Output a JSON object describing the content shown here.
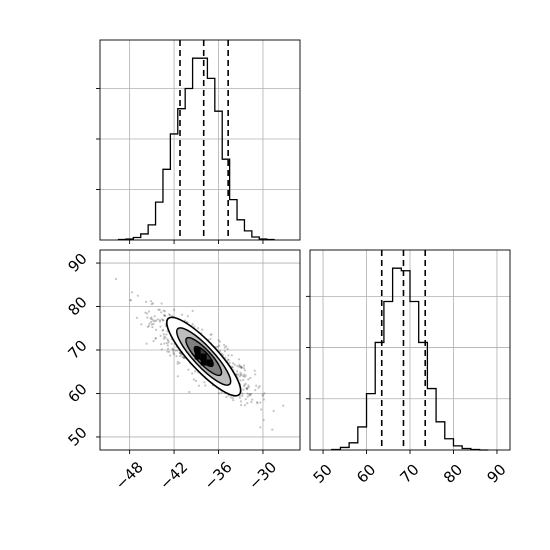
{
  "chart_data": [
    {
      "type": "histogram",
      "panel": "marginal-x",
      "xlim": [
        -52,
        -25
      ],
      "bin_edges": [
        -49.5,
        -48.5,
        -47.5,
        -46.5,
        -45.5,
        -44.5,
        -43.5,
        -42.5,
        -41.5,
        -40.5,
        -39.5,
        -38.5,
        -37.5,
        -36.5,
        -35.5,
        -34.5,
        -33.5,
        -32.5,
        -31.5,
        -30.5,
        -29.5,
        -28.5
      ],
      "counts": [
        1,
        2,
        5,
        12,
        30,
        75,
        140,
        210,
        260,
        300,
        360,
        360,
        320,
        255,
        160,
        80,
        40,
        18,
        6,
        2,
        1
      ],
      "quantiles": [
        -41.2,
        -38.0,
        -34.7
      ],
      "xticks": [
        -48,
        -42,
        -36,
        -30
      ],
      "grid": true
    },
    {
      "type": "scatter-contour",
      "panel": "joint",
      "xlim": [
        -52,
        -25
      ],
      "ylim": [
        47,
        93
      ],
      "center": [
        -38,
        68.5
      ],
      "correlation": -0.85,
      "xticks": [
        -48,
        -42,
        -36,
        -30
      ],
      "xtick_labels": [
        "−48",
        "−42",
        "−36",
        "−30"
      ],
      "yticks": [
        50,
        60,
        70,
        80,
        90
      ],
      "ytick_labels": [
        "50",
        "60",
        "70",
        "80",
        "90"
      ],
      "grid": true
    },
    {
      "type": "histogram",
      "panel": "marginal-y",
      "xlim": [
        47,
        93
      ],
      "bin_edges": [
        52,
        54,
        56,
        58,
        60,
        62,
        64,
        66,
        68,
        70,
        72,
        74,
        76,
        78,
        80,
        82,
        84,
        86,
        88
      ],
      "counts": [
        1,
        5,
        14,
        45,
        110,
        210,
        290,
        355,
        350,
        290,
        210,
        120,
        55,
        22,
        8,
        3,
        1,
        0
      ],
      "quantiles": [
        63.5,
        68.5,
        73.5
      ],
      "xticks": [
        50,
        60,
        70,
        80,
        90
      ],
      "xtick_labels": [
        "50",
        "60",
        "70",
        "80",
        "90"
      ],
      "grid": true
    }
  ]
}
